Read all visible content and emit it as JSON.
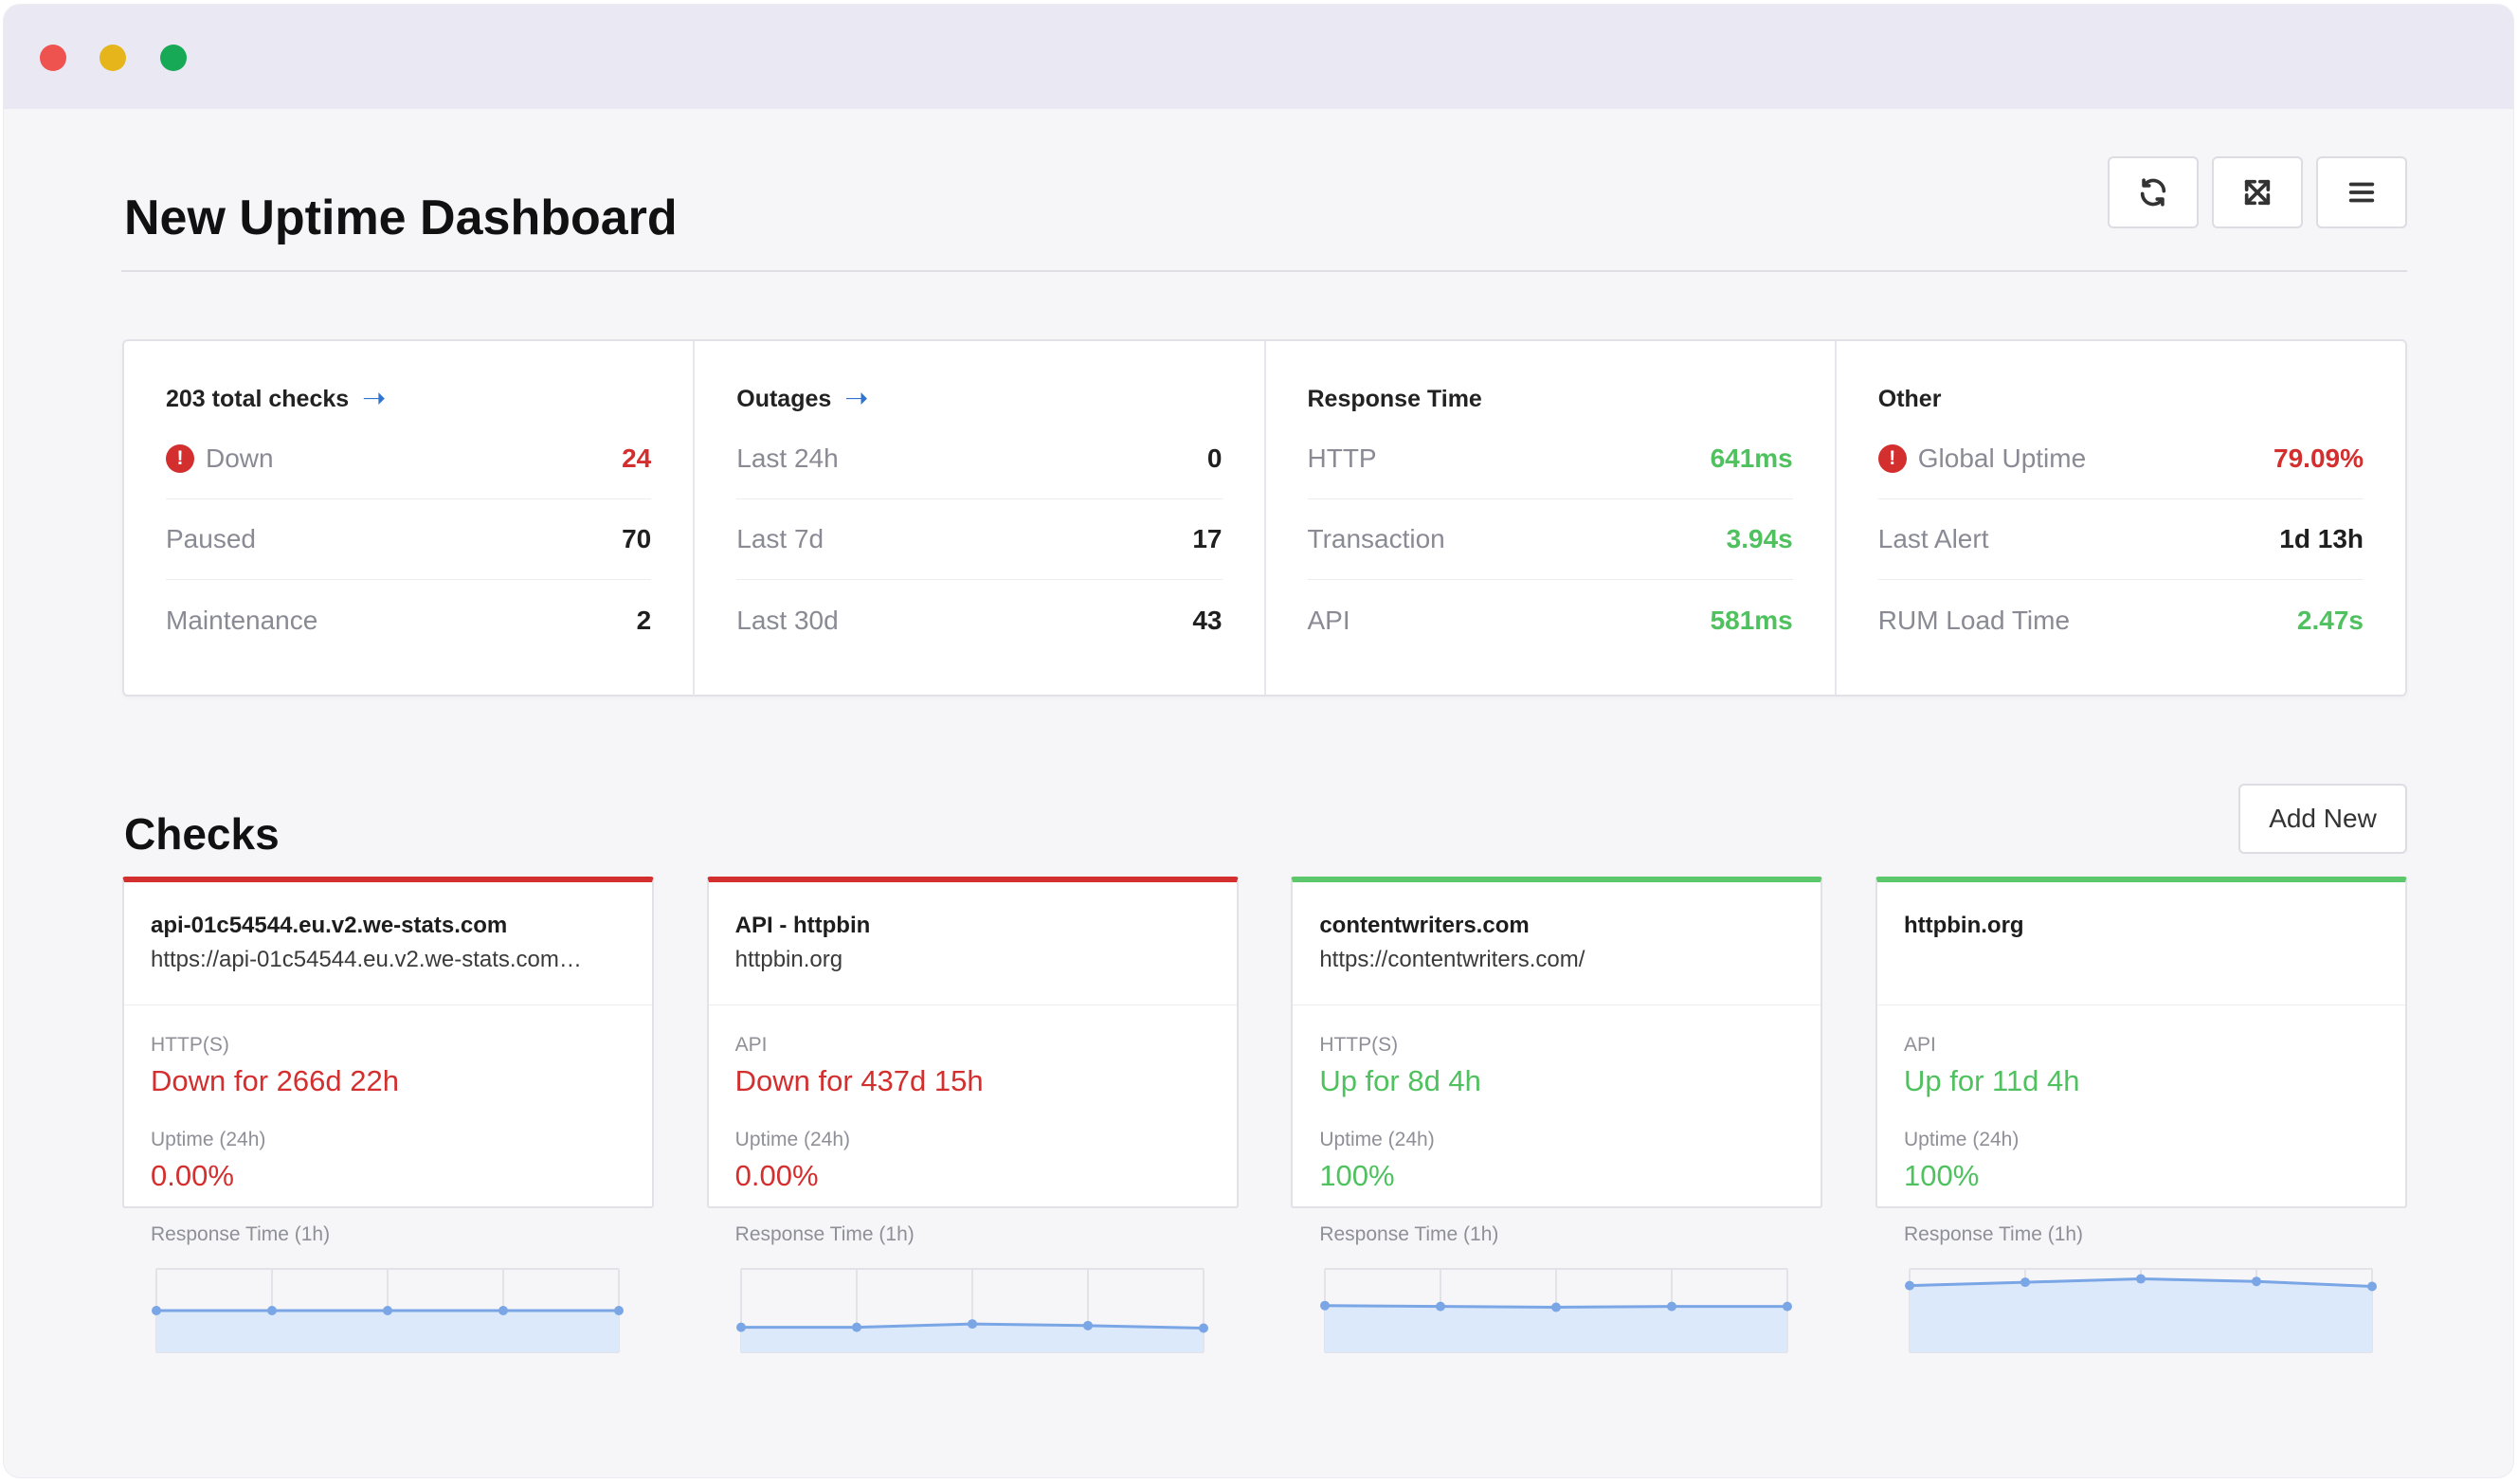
{
  "dashboard": {
    "title": "New Uptime Dashboard"
  },
  "toolbar": {
    "refresh_icon": "refresh-icon",
    "fullscreen_icon": "fullscreen-icon",
    "menu_icon": "menu-icon"
  },
  "stats": [
    {
      "header": "203 total checks",
      "has_arrow": true,
      "rows": [
        {
          "label": "Down",
          "value": "24",
          "alert": true,
          "color": "#d32f2f"
        },
        {
          "label": "Paused",
          "value": "70",
          "alert": false,
          "color": "#1f1f1f"
        },
        {
          "label": "Maintenance",
          "value": "2",
          "alert": false,
          "color": "#1f1f1f"
        }
      ]
    },
    {
      "header": "Outages",
      "has_arrow": true,
      "rows": [
        {
          "label": "Last 24h",
          "value": "0",
          "alert": false,
          "color": "#1f1f1f"
        },
        {
          "label": "Last 7d",
          "value": "17",
          "alert": false,
          "color": "#1f1f1f"
        },
        {
          "label": "Last 30d",
          "value": "43",
          "alert": false,
          "color": "#1f1f1f"
        }
      ]
    },
    {
      "header": "Response Time",
      "has_arrow": false,
      "rows": [
        {
          "label": "HTTP",
          "value": "641ms",
          "alert": false,
          "color": "#4fc15e"
        },
        {
          "label": "Transaction",
          "value": "3.94s",
          "alert": false,
          "color": "#4fc15e"
        },
        {
          "label": "API",
          "value": "581ms",
          "alert": false,
          "color": "#4fc15e"
        }
      ]
    },
    {
      "header": "Other",
      "has_arrow": false,
      "rows": [
        {
          "label": "Global Uptime",
          "value": "79.09%",
          "alert": true,
          "color": "#d32f2f"
        },
        {
          "label": "Last Alert",
          "value": "1d 13h",
          "alert": false,
          "color": "#1f1f1f"
        },
        {
          "label": "RUM Load Time",
          "value": "2.47s",
          "alert": false,
          "color": "#4fc15e"
        }
      ]
    }
  ],
  "checks": {
    "title": "Checks",
    "add_label": "Add New",
    "uptime_label": "Uptime (24h)",
    "response_label": "Response Time (1h)",
    "items": [
      {
        "name": "api-01c54544.eu.v2.we-stats.com",
        "url": "https://api-01c54544.eu.v2.we-stats.com…",
        "type": "HTTP(S)",
        "status": "Down for 266d 22h",
        "state": "down",
        "uptime": "0.00%",
        "response": [
          0.5,
          0.5,
          0.5,
          0.5,
          0.5
        ]
      },
      {
        "name": "API - httpbin",
        "url": "httpbin.org",
        "type": "API",
        "status": "Down for 437d 15h",
        "state": "down",
        "uptime": "0.00%",
        "response": [
          0.3,
          0.3,
          0.34,
          0.32,
          0.29
        ]
      },
      {
        "name": "contentwriters.com",
        "url": "https://contentwriters.com/",
        "type": "HTTP(S)",
        "status": "Up for 8d 4h",
        "state": "up",
        "uptime": "100%",
        "response": [
          0.56,
          0.55,
          0.54,
          0.55,
          0.55
        ]
      },
      {
        "name": "httpbin.org",
        "url": "",
        "type": "API",
        "status": "Up for 11d 4h",
        "state": "up",
        "uptime": "100%",
        "response": [
          0.8,
          0.84,
          0.88,
          0.85,
          0.79
        ]
      }
    ]
  },
  "colors": {
    "down": "#d32f2f",
    "up": "#4fc15e",
    "link": "#2f74d0",
    "chart_line": "#7aa6e6",
    "chart_fill": "#dce9fb"
  }
}
